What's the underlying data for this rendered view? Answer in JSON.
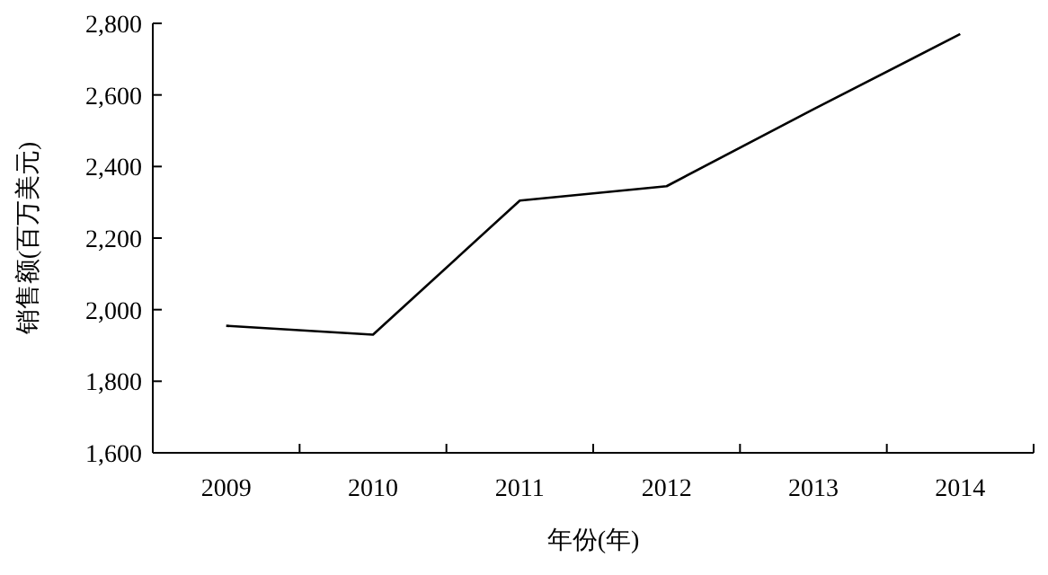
{
  "chart_data": {
    "type": "line",
    "xlabel": "年份(年)",
    "ylabel": "销售额(百万美元)",
    "categories": [
      "2009",
      "2010",
      "2011",
      "2012",
      "2013",
      "2014"
    ],
    "series": [
      {
        "color": "#000000",
        "values": [
          1955,
          1930,
          2305,
          2345,
          2560,
          2770
        ]
      }
    ],
    "ylim": [
      1600,
      2800
    ],
    "yticks": [
      {
        "value": 1600,
        "label": "1,600"
      },
      {
        "value": 1800,
        "label": "1,800"
      },
      {
        "value": 2000,
        "label": "2,000"
      },
      {
        "value": 2200,
        "label": "2,200"
      },
      {
        "value": 2400,
        "label": "2,400"
      },
      {
        "value": 2600,
        "label": "2,600"
      },
      {
        "value": 2800,
        "label": "2,800"
      }
    ],
    "grid": false
  }
}
